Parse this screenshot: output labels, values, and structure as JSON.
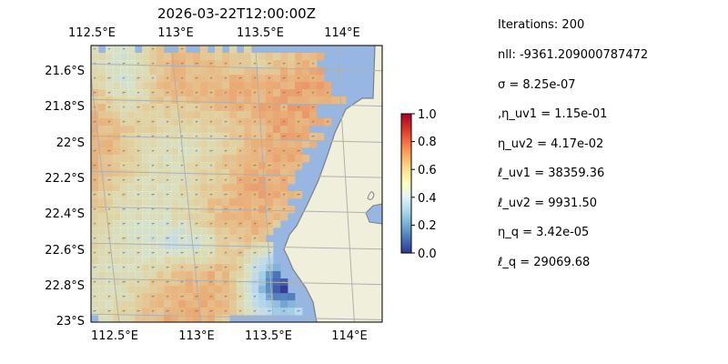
{
  "chart_data": {
    "type": "heatmap",
    "title": "2026-03-22T12:00:00Z",
    "xlabel": "",
    "ylabel": "",
    "x_ticks": [
      "112.5°E",
      "113°E",
      "113.5°E",
      "114°E"
    ],
    "x_ticks_bottom": [
      "112.5°E",
      "113°E",
      "113.5°E",
      "114°E"
    ],
    "y_ticks": [
      "21.6°S",
      "21.8°S",
      "22°S",
      "22.2°S",
      "22.4°S",
      "22.6°S",
      "22.8°S",
      "23°S"
    ],
    "xlim": [
      112.5,
      114.2
    ],
    "ylim": [
      -23.0,
      -21.5
    ],
    "colorbar": {
      "ticks": [
        "0.0",
        "0.2",
        "0.4",
        "0.6",
        "0.8",
        "1.0"
      ],
      "range": [
        0.0,
        1.0
      ],
      "colormap": "RdYlBu_r"
    },
    "colors": {
      "ocean": "#97b6e1",
      "land": "#efefdb",
      "coastline": "#808080",
      "grid": "#b0b0b0",
      "quiver": "#5a7fc0"
    },
    "field_description": "ocean-surface field on a 0.04° grid; values mostly 0.5-0.8, highest (~0.7-0.8) in the north-central area, lowest (~0-0.2) in the south-east near the coast"
  },
  "params": [
    "Iterations: 200",
    "nll: -9361.209000787472",
    "σ = 8.25e-07",
    ",η_uv1 = 1.15e-01",
    "η_uv2 = 4.17e-02",
    "ℓ_uv1 = 38359.36",
    "ℓ_uv2 = 9931.50",
    "η_q = 3.42e-05",
    "ℓ_q = 29069.68"
  ]
}
